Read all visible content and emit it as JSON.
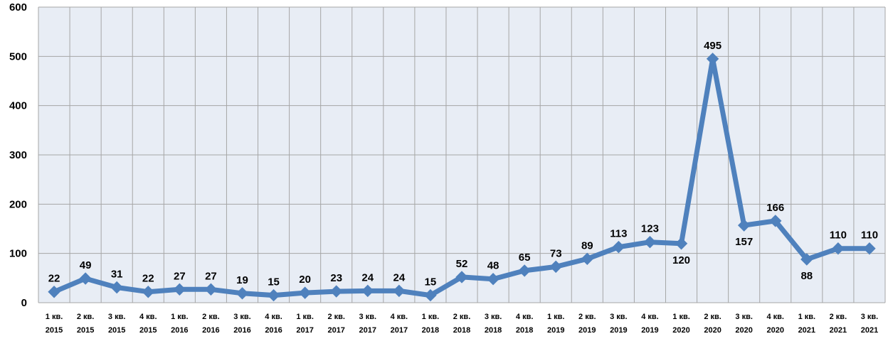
{
  "chart_data": {
    "type": "line",
    "title": "",
    "xlabel": "",
    "ylabel": "",
    "ylim": [
      0,
      600
    ],
    "yticks": [
      0,
      100,
      200,
      300,
      400,
      500,
      600
    ],
    "grid": true,
    "legend": "none",
    "categories": [
      [
        "1 кв.",
        "2015"
      ],
      [
        "2 кв.",
        "2015"
      ],
      [
        "3 кв.",
        "2015"
      ],
      [
        "4 кв.",
        "2015"
      ],
      [
        "1 кв.",
        "2016"
      ],
      [
        "2 кв.",
        "2016"
      ],
      [
        "3 кв.",
        "2016"
      ],
      [
        "4 кв.",
        "2016"
      ],
      [
        "1 кв.",
        "2017"
      ],
      [
        "2 кв.",
        "2017"
      ],
      [
        "3 кв.",
        "2017"
      ],
      [
        "4 кв.",
        "2017"
      ],
      [
        "1 кв.",
        "2018"
      ],
      [
        "2 кв.",
        "2018"
      ],
      [
        "3 кв.",
        "2018"
      ],
      [
        "4 кв.",
        "2018"
      ],
      [
        "1 кв.",
        "2019"
      ],
      [
        "2 кв.",
        "2019"
      ],
      [
        "3 кв.",
        "2019"
      ],
      [
        "4 кв.",
        "2019"
      ],
      [
        "1 кв.",
        "2020"
      ],
      [
        "2 кв.",
        "2020"
      ],
      [
        "3 кв.",
        "2020"
      ],
      [
        "4 кв.",
        "2020"
      ],
      [
        "1 кв.",
        "2021"
      ],
      [
        "2 кв.",
        "2021"
      ],
      [
        "3 кв.",
        "2021"
      ]
    ],
    "series": [
      {
        "values": [
          22,
          49,
          31,
          22,
          27,
          27,
          19,
          15,
          20,
          23,
          24,
          24,
          15,
          52,
          48,
          65,
          73,
          89,
          113,
          123,
          120,
          495,
          157,
          166,
          88,
          110,
          110
        ],
        "color": "#4f81bd"
      }
    ],
    "colors": {
      "plot_background": "#e8edf5",
      "grid": "#a6a6a6",
      "line": "#4f81bd"
    }
  }
}
